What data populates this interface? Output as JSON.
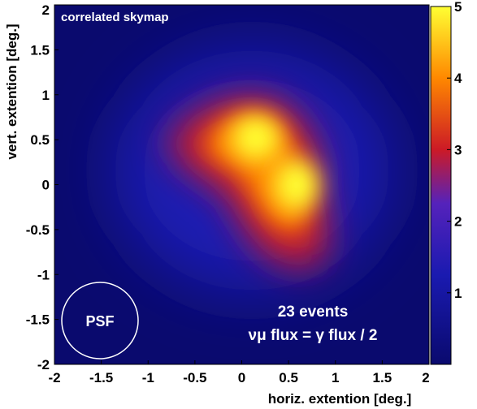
{
  "chart_data": {
    "type": "heatmap",
    "title": "correlated skymap",
    "xlabel": "horiz. extention [deg.]",
    "ylabel": "vert. extention [deg.]",
    "xlim": [
      -2,
      2
    ],
    "ylim": [
      -2,
      2
    ],
    "x_ticks": [
      "-2",
      "-1.5",
      "-1",
      "-0.5",
      "0",
      "0.5",
      "1",
      "1.5",
      "2"
    ],
    "y_ticks": [
      "2",
      "1.5",
      "1",
      "0.5",
      "0",
      "-0.5",
      "-1",
      "-1.5",
      "-2"
    ],
    "colorbar": {
      "range": [
        0,
        5
      ],
      "ticks": [
        "5",
        "4",
        "3",
        "2",
        "1"
      ],
      "colors": [
        "#0a0a6e",
        "#2a2ad0",
        "#cc1a26",
        "#ff8800",
        "#ffff33"
      ]
    },
    "hotspots": [
      {
        "x": 0.3,
        "y": 0.6,
        "value": 4.8
      },
      {
        "x": 0.7,
        "y": 0.05,
        "value": 5.0
      },
      {
        "x": -0.4,
        "y": 0.5,
        "value": 3.0
      }
    ],
    "annotations": {
      "psf_label": "PSF",
      "events": "23 events",
      "flux_relation": "νμ flux = γ flux / 2"
    }
  }
}
